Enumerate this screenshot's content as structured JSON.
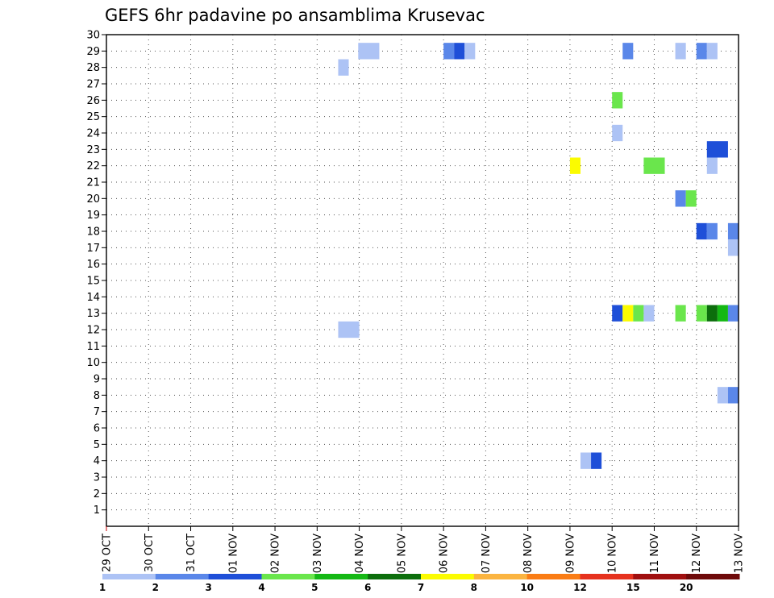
{
  "chart_data": {
    "type": "heatmap",
    "title": "GEFS 6hr padavine po ansamblima Krusevac",
    "xlabel": "",
    "ylabel": "",
    "x_range": [
      0,
      15
    ],
    "y_range": [
      0,
      30
    ],
    "x_ticks": [
      {
        "value": 0,
        "label": "29 OCT"
      },
      {
        "value": 1,
        "label": "30 OCT"
      },
      {
        "value": 2,
        "label": "31 OCT"
      },
      {
        "value": 3,
        "label": "01 NOV"
      },
      {
        "value": 4,
        "label": "02 NOV"
      },
      {
        "value": 5,
        "label": "03 NOV"
      },
      {
        "value": 6,
        "label": "04 NOV"
      },
      {
        "value": 7,
        "label": "05 NOV"
      },
      {
        "value": 8,
        "label": "06 NOV"
      },
      {
        "value": 9,
        "label": "07 NOV"
      },
      {
        "value": 10,
        "label": "08 NOV"
      },
      {
        "value": 11,
        "label": "09 NOV"
      },
      {
        "value": 12,
        "label": "10 NOV"
      },
      {
        "value": 13,
        "label": "11 NOV"
      },
      {
        "value": 14,
        "label": "12 NOV"
      },
      {
        "value": 15,
        "label": "13 NOV"
      }
    ],
    "y_ticks": [
      1,
      2,
      3,
      4,
      5,
      6,
      7,
      8,
      9,
      10,
      11,
      12,
      13,
      14,
      15,
      16,
      17,
      18,
      19,
      20,
      21,
      22,
      23,
      24,
      25,
      26,
      27,
      28,
      29,
      30
    ],
    "grid": true,
    "legend": {
      "placement": "bottom",
      "boundary_labels": [
        "1",
        "2",
        "3",
        "4",
        "5",
        "6",
        "7",
        "8",
        "10",
        "12",
        "15",
        "20"
      ],
      "colors": [
        "#adc3f5",
        "#5a87e9",
        "#1e4fd8",
        "#6ae64c",
        "#14b814",
        "#0c6e0c",
        "#fbfb00",
        "#fbb440",
        "#fa7c14",
        "#e6321e",
        "#a00f0f",
        "#6e0a0a"
      ]
    },
    "cells": [
      {
        "member": 29,
        "t": 5.975,
        "dur": 0.5,
        "v": 1.5
      },
      {
        "member": 28,
        "t": 5.5,
        "dur": 0.25,
        "v": 1.5
      },
      {
        "member": 12,
        "t": 5.5,
        "dur": 0.5,
        "v": 1.5
      },
      {
        "member": 29,
        "t": 8.0,
        "dur": 0.25,
        "v": 2.5
      },
      {
        "member": 29,
        "t": 8.25,
        "dur": 0.25,
        "v": 3.5
      },
      {
        "member": 29,
        "t": 8.5,
        "dur": 0.25,
        "v": 1.5
      },
      {
        "member": 4,
        "t": 11.25,
        "dur": 0.25,
        "v": 1.5
      },
      {
        "member": 4,
        "t": 11.5,
        "dur": 0.25,
        "v": 3.5
      },
      {
        "member": 22,
        "t": 11.0,
        "dur": 0.25,
        "v": 7.5
      },
      {
        "member": 29,
        "t": 12.25,
        "dur": 0.25,
        "v": 2.5
      },
      {
        "member": 26,
        "t": 12.0,
        "dur": 0.25,
        "v": 4.5
      },
      {
        "member": 24,
        "t": 12.0,
        "dur": 0.25,
        "v": 1.5
      },
      {
        "member": 13,
        "t": 12.0,
        "dur": 0.25,
        "v": 3.5
      },
      {
        "member": 13,
        "t": 12.25,
        "dur": 0.25,
        "v": 7.5
      },
      {
        "member": 13,
        "t": 12.5,
        "dur": 0.25,
        "v": 4.5
      },
      {
        "member": 13,
        "t": 12.75,
        "dur": 0.25,
        "v": 1.5
      },
      {
        "member": 22,
        "t": 12.75,
        "dur": 0.5,
        "v": 4.5
      },
      {
        "member": 29,
        "t": 13.5,
        "dur": 0.25,
        "v": 1.5
      },
      {
        "member": 20,
        "t": 13.5,
        "dur": 0.25,
        "v": 2.5
      },
      {
        "member": 20,
        "t": 13.75,
        "dur": 0.25,
        "v": 4.5
      },
      {
        "member": 13,
        "t": 13.5,
        "dur": 0.25,
        "v": 4.5
      },
      {
        "member": 29,
        "t": 14.0,
        "dur": 0.25,
        "v": 2.5
      },
      {
        "member": 29,
        "t": 14.25,
        "dur": 0.25,
        "v": 1.5
      },
      {
        "member": 23,
        "t": 14.25,
        "dur": 0.5,
        "v": 3.5
      },
      {
        "member": 22,
        "t": 14.25,
        "dur": 0.25,
        "v": 1.5
      },
      {
        "member": 18,
        "t": 14.0,
        "dur": 0.25,
        "v": 3.5
      },
      {
        "member": 18,
        "t": 14.25,
        "dur": 0.25,
        "v": 2.5
      },
      {
        "member": 18,
        "t": 14.75,
        "dur": 0.25,
        "v": 2.5
      },
      {
        "member": 17,
        "t": 14.75,
        "dur": 0.25,
        "v": 1.5
      },
      {
        "member": 13,
        "t": 14.0,
        "dur": 0.25,
        "v": 4.5
      },
      {
        "member": 13,
        "t": 14.25,
        "dur": 0.25,
        "v": 6.5
      },
      {
        "member": 13,
        "t": 14.5,
        "dur": 0.25,
        "v": 5.5
      },
      {
        "member": 13,
        "t": 14.75,
        "dur": 0.25,
        "v": 2.5
      },
      {
        "member": 8,
        "t": 14.5,
        "dur": 0.25,
        "v": 1.5
      },
      {
        "member": 8,
        "t": 14.75,
        "dur": 0.25,
        "v": 2.5
      }
    ]
  }
}
